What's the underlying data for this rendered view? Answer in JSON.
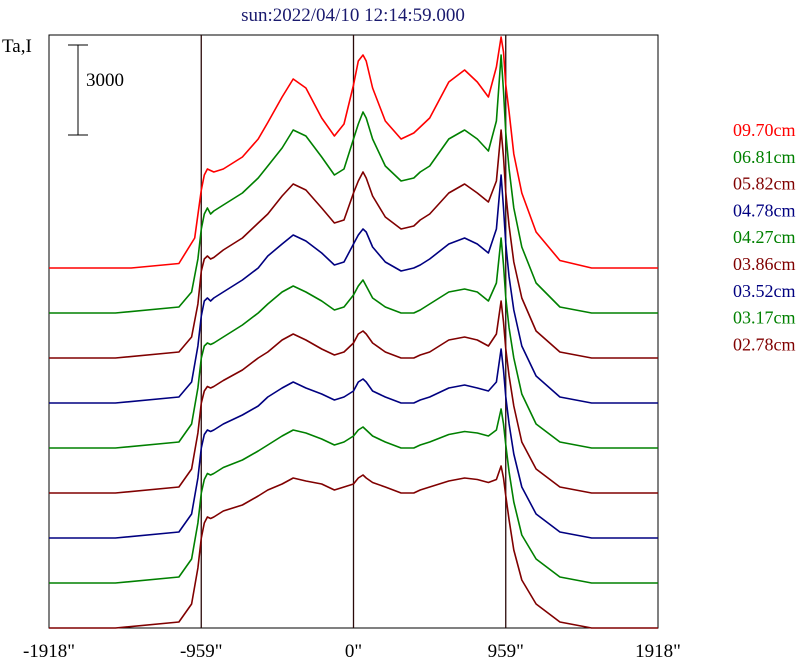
{
  "chart_data": {
    "type": "line",
    "title": "sun:2022/04/10 12:14:59.000",
    "ylabel": "Ta,I",
    "scale_bar_label": "3000",
    "scale_bar_value": 3000,
    "x_tick_labels": [
      "-1918\"",
      "-959\"",
      "0\"",
      "959\"",
      "1918\""
    ],
    "x_ticks": [
      -1918,
      -959,
      0,
      959,
      1918
    ],
    "xlim": [
      -1918,
      1918
    ],
    "vlines": [
      -959,
      0,
      959
    ],
    "grid": false,
    "legend_position": "right",
    "series": [
      {
        "name": "09.70cm",
        "color": "#ff0000",
        "offset": 0,
        "bump": 1.0,
        "x": [
          -1918,
          -1400,
          -1100,
          -1000,
          -959,
          -940,
          -920,
          -880,
          -820,
          -700,
          -600,
          -540,
          -450,
          -380,
          -300,
          -200,
          -120,
          -60,
          0,
          30,
          60,
          80,
          120,
          200,
          300,
          380,
          420,
          480,
          600,
          700,
          780,
          850,
          900,
          930,
          945,
          959,
          980,
          1010,
          1060,
          1150,
          1300,
          1500,
          1700,
          1918
        ],
        "y": [
          0,
          0,
          150,
          1000,
          2600,
          3100,
          3300,
          3200,
          3300,
          3700,
          4300,
          4850,
          5700,
          6300,
          6000,
          5000,
          4400,
          4800,
          6100,
          6900,
          7100,
          6900,
          6000,
          4900,
          4300,
          4500,
          4700,
          5000,
          6200,
          6600,
          6200,
          5700,
          6700,
          7700,
          7200,
          6100,
          5200,
          3800,
          2500,
          1200,
          250,
          0,
          0,
          0
        ]
      },
      {
        "name": "06.81cm",
        "color": "#008000",
        "offset": -1500,
        "bump": 0.78,
        "x": [
          -1918,
          -1500,
          -1100,
          -1020,
          -980,
          -959,
          -940,
          -920,
          -900,
          -880,
          -820,
          -700,
          -600,
          -540,
          -450,
          -380,
          -300,
          -200,
          -120,
          -60,
          0,
          30,
          60,
          80,
          120,
          200,
          300,
          380,
          420,
          480,
          600,
          700,
          780,
          850,
          900,
          930,
          945,
          959,
          980,
          1010,
          1060,
          1150,
          1300,
          1500,
          1700,
          1918
        ],
        "y": [
          0,
          0,
          200,
          700,
          1800,
          2800,
          3300,
          3500,
          3300,
          3400,
          3600,
          4000,
          4500,
          4900,
          5500,
          6100,
          5900,
          5200,
          4600,
          4800,
          5800,
          6300,
          6700,
          6500,
          5800,
          4900,
          4400,
          4500,
          4700,
          4900,
          5800,
          6100,
          5800,
          5400,
          6400,
          8600,
          7400,
          6000,
          4800,
          3500,
          2200,
          1000,
          200,
          0,
          0,
          0
        ]
      },
      {
        "name": "05.82cm",
        "color": "#800000",
        "offset": -3000,
        "bump": 0.72,
        "x": [
          -1918,
          -1500,
          -1100,
          -1020,
          -980,
          -959,
          -940,
          -920,
          -900,
          -880,
          -820,
          -700,
          -600,
          -540,
          -450,
          -380,
          -300,
          -200,
          -120,
          -60,
          0,
          30,
          60,
          80,
          120,
          200,
          300,
          380,
          420,
          480,
          600,
          700,
          780,
          850,
          900,
          930,
          945,
          959,
          980,
          1010,
          1060,
          1150,
          1300,
          1500,
          1700,
          1918
        ],
        "y": [
          0,
          0,
          200,
          700,
          1800,
          2900,
          3300,
          3400,
          3300,
          3350,
          3600,
          4000,
          4500,
          4800,
          5400,
          5800,
          5600,
          5000,
          4500,
          4600,
          5500,
          5900,
          6200,
          6000,
          5400,
          4700,
          4300,
          4400,
          4600,
          4800,
          5500,
          5800,
          5500,
          5200,
          5900,
          7600,
          6700,
          5500,
          4400,
          3200,
          2000,
          900,
          200,
          0,
          0,
          0
        ]
      },
      {
        "name": "04.78cm",
        "color": "#000080",
        "offset": -4500,
        "bump": 0.62,
        "x": [
          -1918,
          -1500,
          -1100,
          -1020,
          -980,
          -959,
          -940,
          -920,
          -900,
          -880,
          -820,
          -700,
          -600,
          -540,
          -450,
          -380,
          -300,
          -200,
          -120,
          -60,
          0,
          30,
          60,
          80,
          120,
          200,
          300,
          380,
          420,
          480,
          600,
          700,
          780,
          850,
          900,
          930,
          945,
          959,
          980,
          1010,
          1060,
          1150,
          1300,
          1500,
          1700,
          1918
        ],
        "y": [
          0,
          0,
          200,
          700,
          1900,
          2900,
          3400,
          3500,
          3400,
          3500,
          3700,
          4100,
          4500,
          4900,
          5300,
          5600,
          5400,
          5000,
          4600,
          4700,
          5300,
          5600,
          5800,
          5700,
          5200,
          4700,
          4400,
          4500,
          4600,
          4800,
          5300,
          5500,
          5300,
          5000,
          5800,
          7600,
          6500,
          5300,
          4200,
          3100,
          1900,
          900,
          200,
          0,
          0,
          0
        ]
      },
      {
        "name": "04.27cm",
        "color": "#008000",
        "offset": -6000,
        "bump": 0.5,
        "x": [
          -1918,
          -1500,
          -1100,
          -1020,
          -980,
          -959,
          -940,
          -920,
          -900,
          -880,
          -820,
          -700,
          -600,
          -540,
          -450,
          -380,
          -300,
          -200,
          -120,
          -60,
          0,
          30,
          60,
          80,
          120,
          200,
          300,
          380,
          420,
          480,
          600,
          700,
          780,
          850,
          900,
          930,
          945,
          959,
          980,
          1010,
          1060,
          1150,
          1300,
          1500,
          1700,
          1918
        ],
        "y": [
          0,
          0,
          200,
          800,
          2000,
          3000,
          3400,
          3500,
          3450,
          3500,
          3700,
          4100,
          4500,
          4800,
          5200,
          5400,
          5200,
          4900,
          4600,
          4700,
          5100,
          5400,
          5600,
          5400,
          5000,
          4700,
          4500,
          4500,
          4600,
          4800,
          5200,
          5300,
          5200,
          4900,
          5500,
          7000,
          6100,
          5000,
          4000,
          3000,
          1800,
          800,
          200,
          0,
          0,
          0
        ]
      },
      {
        "name": "03.86cm",
        "color": "#800000",
        "offset": -7500,
        "bump": 0.42,
        "x": [
          -1918,
          -1500,
          -1100,
          -1020,
          -980,
          -959,
          -940,
          -920,
          -900,
          -880,
          -820,
          -700,
          -600,
          -540,
          -450,
          -380,
          -300,
          -200,
          -120,
          -60,
          0,
          30,
          60,
          80,
          120,
          200,
          300,
          380,
          420,
          480,
          600,
          700,
          780,
          850,
          900,
          930,
          945,
          959,
          980,
          1010,
          1060,
          1150,
          1300,
          1500,
          1700,
          1918
        ],
        "y": [
          0,
          0,
          200,
          800,
          2000,
          3000,
          3400,
          3550,
          3500,
          3550,
          3750,
          4100,
          4500,
          4700,
          5100,
          5300,
          5100,
          4800,
          4600,
          4700,
          5000,
          5300,
          5400,
          5300,
          5000,
          4700,
          4500,
          4500,
          4600,
          4700,
          5100,
          5200,
          5100,
          4900,
          5300,
          6400,
          5700,
          4800,
          3900,
          2900,
          1700,
          800,
          200,
          0,
          0,
          0
        ]
      },
      {
        "name": "03.52cm",
        "color": "#000080",
        "offset": -9000,
        "bump": 0.35,
        "x": [
          -1918,
          -1500,
          -1100,
          -1020,
          -980,
          -959,
          -940,
          -920,
          -900,
          -880,
          -820,
          -700,
          -600,
          -540,
          -450,
          -380,
          -300,
          -200,
          -120,
          -60,
          0,
          30,
          60,
          80,
          120,
          200,
          300,
          380,
          420,
          480,
          600,
          700,
          780,
          850,
          900,
          930,
          945,
          959,
          980,
          1010,
          1060,
          1150,
          1300,
          1500,
          1700,
          1918
        ],
        "y": [
          0,
          0,
          200,
          800,
          2000,
          3000,
          3450,
          3600,
          3550,
          3600,
          3800,
          4100,
          4400,
          4700,
          5000,
          5200,
          5000,
          4800,
          4600,
          4700,
          4900,
          5200,
          5300,
          5200,
          4900,
          4700,
          4500,
          4500,
          4600,
          4700,
          5000,
          5100,
          5000,
          4900,
          5200,
          6300,
          5600,
          4700,
          3800,
          2800,
          1700,
          800,
          200,
          0,
          0,
          0
        ]
      },
      {
        "name": "03.17cm",
        "color": "#008000",
        "offset": -10500,
        "bump": 0.27,
        "x": [
          -1918,
          -1500,
          -1100,
          -1020,
          -980,
          -959,
          -940,
          -920,
          -900,
          -880,
          -820,
          -700,
          -600,
          -540,
          -450,
          -380,
          -300,
          -200,
          -120,
          -60,
          0,
          30,
          60,
          80,
          120,
          200,
          300,
          380,
          420,
          480,
          600,
          700,
          780,
          850,
          900,
          930,
          945,
          959,
          980,
          1010,
          1060,
          1150,
          1300,
          1500,
          1700,
          1918
        ],
        "y": [
          0,
          0,
          200,
          800,
          2000,
          3000,
          3450,
          3650,
          3600,
          3650,
          3850,
          4100,
          4400,
          4600,
          4900,
          5100,
          5000,
          4800,
          4600,
          4700,
          4900,
          5100,
          5200,
          5100,
          4900,
          4700,
          4500,
          4500,
          4600,
          4700,
          4950,
          5050,
          5000,
          4900,
          5100,
          5800,
          5300,
          4600,
          3700,
          2700,
          1600,
          800,
          200,
          0,
          0,
          0
        ]
      },
      {
        "name": "02.78cm",
        "color": "#800000",
        "offset": -12000,
        "bump": 0.2,
        "x": [
          -1918,
          -1500,
          -1100,
          -1020,
          -980,
          -959,
          -940,
          -920,
          -900,
          -880,
          -820,
          -700,
          -600,
          -540,
          -450,
          -380,
          -300,
          -200,
          -120,
          -60,
          0,
          30,
          60,
          80,
          120,
          200,
          300,
          380,
          420,
          480,
          600,
          700,
          780,
          850,
          900,
          930,
          945,
          959,
          980,
          1010,
          1060,
          1150,
          1300,
          1500,
          1700,
          1918
        ],
        "y": [
          0,
          0,
          200,
          800,
          2000,
          3000,
          3500,
          3700,
          3650,
          3700,
          3900,
          4100,
          4400,
          4600,
          4800,
          5000,
          4900,
          4800,
          4600,
          4700,
          4800,
          5000,
          5100,
          5000,
          4850,
          4700,
          4500,
          4500,
          4600,
          4700,
          4900,
          5000,
          4950,
          4850,
          4950,
          5400,
          5000,
          4400,
          3600,
          2600,
          1600,
          800,
          200,
          0,
          0,
          0
        ]
      }
    ]
  }
}
